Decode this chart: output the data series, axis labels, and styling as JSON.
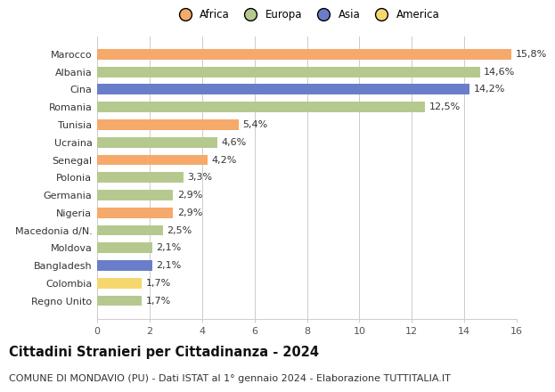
{
  "countries": [
    "Marocco",
    "Albania",
    "Cina",
    "Romania",
    "Tunisia",
    "Ucraina",
    "Senegal",
    "Polonia",
    "Germania",
    "Nigeria",
    "Macedonia d/N.",
    "Moldova",
    "Bangladesh",
    "Colombia",
    "Regno Unito"
  ],
  "values": [
    15.8,
    14.6,
    14.2,
    12.5,
    5.4,
    4.6,
    4.2,
    3.3,
    2.9,
    2.9,
    2.5,
    2.1,
    2.1,
    1.7,
    1.7
  ],
  "labels": [
    "15,8%",
    "14,6%",
    "14,2%",
    "12,5%",
    "5,4%",
    "4,6%",
    "4,2%",
    "3,3%",
    "2,9%",
    "2,9%",
    "2,5%",
    "2,1%",
    "2,1%",
    "1,7%",
    "1,7%"
  ],
  "continents": [
    "Africa",
    "Europa",
    "Asia",
    "Europa",
    "Africa",
    "Europa",
    "Africa",
    "Europa",
    "Europa",
    "Africa",
    "Europa",
    "Europa",
    "Asia",
    "America",
    "Europa"
  ],
  "colors": {
    "Africa": "#F5A96B",
    "Europa": "#B5C98E",
    "Asia": "#6A7DC9",
    "America": "#F5D76E"
  },
  "title": "Cittadini Stranieri per Cittadinanza - 2024",
  "subtitle": "COMUNE DI MONDAVIO (PU) - Dati ISTAT al 1° gennaio 2024 - Elaborazione TUTTITALIA.IT",
  "xlim": [
    0,
    16
  ],
  "xticks": [
    0,
    2,
    4,
    6,
    8,
    10,
    12,
    14,
    16
  ],
  "background_color": "#ffffff",
  "grid_color": "#cccccc",
  "bar_height": 0.6,
  "title_fontsize": 10.5,
  "subtitle_fontsize": 8,
  "label_fontsize": 8,
  "tick_fontsize": 8,
  "legend_fontsize": 8.5,
  "legend_entries": [
    "Africa",
    "Europa",
    "Asia",
    "America"
  ]
}
